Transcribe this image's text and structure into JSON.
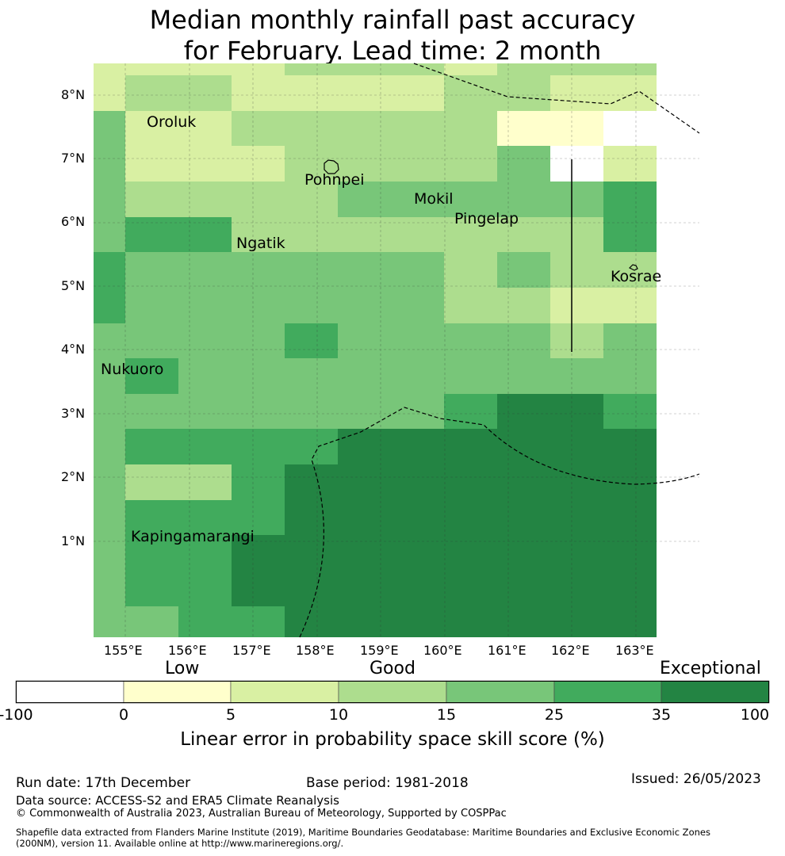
{
  "title": {
    "line1": "Median monthly rainfall past accuracy",
    "line2": "for February. Lead time: 2 month"
  },
  "map": {
    "lon_ticks": [
      "155°E",
      "156°E",
      "157°E",
      "158°E",
      "159°E",
      "160°E",
      "161°E",
      "162°E",
      "163°E"
    ],
    "lat_ticks": [
      "8°N",
      "7°N",
      "6°N",
      "5°N",
      "4°N",
      "3°N",
      "2°N",
      "1°N"
    ],
    "places": [
      "Oroluk",
      "Pohnpei",
      "Mokil",
      "Pingelap",
      "Ngatik",
      "Kosrae",
      "Nukuoro",
      "Kapingamarangi"
    ]
  },
  "colorbar": {
    "category_labels": [
      "Low",
      "Good",
      "Exceptional"
    ],
    "ticks": [
      "-100",
      "0",
      "5",
      "10",
      "15",
      "25",
      "35",
      "100"
    ],
    "colors": [
      "#ffffff",
      "#ffffcc",
      "#d9f0a3",
      "#addd8e",
      "#78c679",
      "#41ab5d",
      "#238443"
    ],
    "label": "Linear error in probability space skill score (%)"
  },
  "footer": {
    "run_date": "Run date: 17th December",
    "base_period": "Base period: 1981-2018",
    "issued": "Issued: 26/05/2023",
    "data_source": "Data source: ACCESS-S2 and ERA5 Climate Reanalysis",
    "copyright": "© Commonwealth of Australia 2023, Australian Bureau of Meteorology, Supported by COSPPac",
    "shapefile_1": "Shapefile data extracted from Flanders Marine Institute (2019), Maritime Boundaries Geodatabase: Maritime Boundaries and Exclusive Economic Zones",
    "shapefile_2": "(200NM), version 11. Available online at http://www.marineregions.org/."
  },
  "grid_rows": [
    "22223332333",
    "23322223322",
    "42233333110",
    "42223333402",
    "43333444445",
    "45533333335",
    "54444443433",
    "54444443322",
    "44445444434",
    "45444444444",
    "44444445665",
    "45555666666",
    "43356666666",
    "45556666666",
    "45566666666",
    "45566666666",
    "44556666666"
  ]
}
